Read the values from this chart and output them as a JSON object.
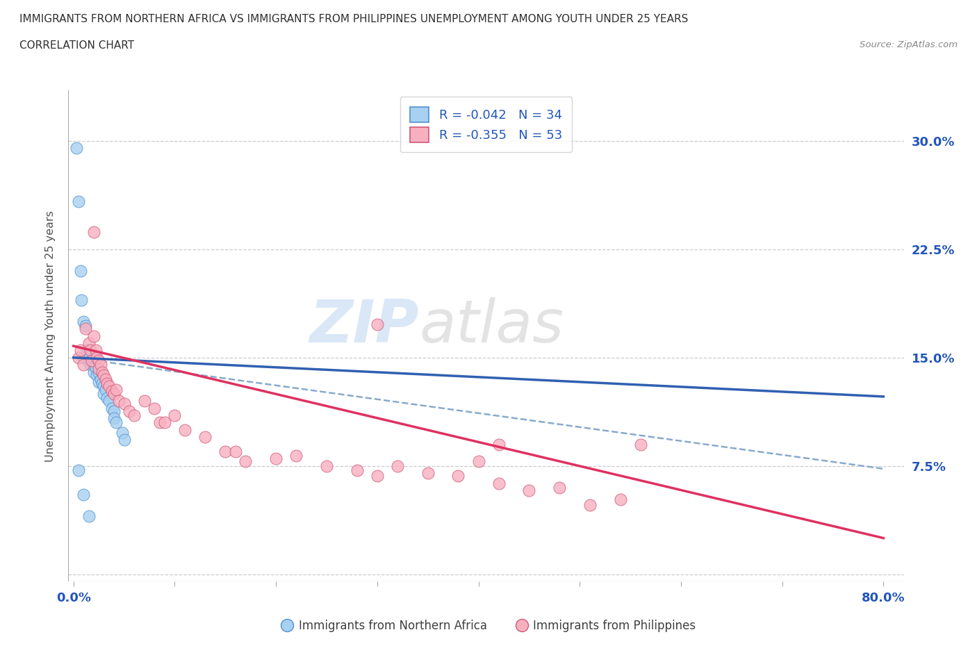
{
  "title_line1": "IMMIGRANTS FROM NORTHERN AFRICA VS IMMIGRANTS FROM PHILIPPINES UNEMPLOYMENT AMONG YOUTH UNDER 25 YEARS",
  "title_line2": "CORRELATION CHART",
  "source_text": "Source: ZipAtlas.com",
  "ylabel": "Unemployment Among Youth under 25 years",
  "xlim": [
    -0.005,
    0.82
  ],
  "ylim": [
    -0.005,
    0.335
  ],
  "yticks": [
    0.0,
    0.075,
    0.15,
    0.225,
    0.3
  ],
  "ytick_labels": [
    "",
    "7.5%",
    "15.0%",
    "22.5%",
    "30.0%"
  ],
  "xticks": [
    0.0,
    0.1,
    0.2,
    0.3,
    0.4,
    0.5,
    0.6,
    0.7,
    0.8
  ],
  "xtick_labels": [
    "0.0%",
    "",
    "",
    "",
    "",
    "",
    "",
    "",
    "80.0%"
  ],
  "watermark_zip": "ZIP",
  "watermark_atlas": "atlas",
  "legend_r1": "R = -0.042   N = 34",
  "legend_r2": "R = -0.355   N = 53",
  "color_blue": "#a8d0f0",
  "color_blue_edge": "#5090d0",
  "color_blue_line": "#3060b0",
  "color_pink": "#f8b0c0",
  "color_pink_edge": "#d05878",
  "color_pink_line": "#e03060",
  "color_dashed": "#88aacc",
  "axis_label_color": "#2255bb",
  "blue_scatter_x": [
    0.003,
    0.005,
    0.007,
    0.008,
    0.01,
    0.01,
    0.012,
    0.013,
    0.015,
    0.015,
    0.017,
    0.018,
    0.02,
    0.02,
    0.022,
    0.023,
    0.025,
    0.025,
    0.027,
    0.028,
    0.03,
    0.03,
    0.032,
    0.033,
    0.035,
    0.038,
    0.04,
    0.04,
    0.042,
    0.048,
    0.05,
    0.005,
    0.01,
    0.015
  ],
  "blue_scatter_y": [
    0.295,
    0.258,
    0.21,
    0.19,
    0.175,
    0.15,
    0.172,
    0.155,
    0.153,
    0.147,
    0.145,
    0.148,
    0.15,
    0.14,
    0.143,
    0.138,
    0.14,
    0.133,
    0.135,
    0.132,
    0.13,
    0.125,
    0.128,
    0.122,
    0.12,
    0.115,
    0.113,
    0.108,
    0.105,
    0.098,
    0.093,
    0.072,
    0.055,
    0.04
  ],
  "pink_scatter_x": [
    0.005,
    0.007,
    0.01,
    0.012,
    0.015,
    0.017,
    0.018,
    0.02,
    0.022,
    0.023,
    0.025,
    0.025,
    0.027,
    0.028,
    0.03,
    0.032,
    0.033,
    0.035,
    0.038,
    0.04,
    0.042,
    0.045,
    0.05,
    0.055,
    0.06,
    0.07,
    0.08,
    0.085,
    0.09,
    0.1,
    0.11,
    0.13,
    0.15,
    0.16,
    0.17,
    0.2,
    0.22,
    0.25,
    0.28,
    0.3,
    0.32,
    0.35,
    0.38,
    0.4,
    0.42,
    0.45,
    0.48,
    0.51,
    0.54,
    0.56,
    0.02,
    0.3,
    0.42
  ],
  "pink_scatter_y": [
    0.15,
    0.155,
    0.145,
    0.17,
    0.16,
    0.155,
    0.148,
    0.165,
    0.155,
    0.15,
    0.148,
    0.142,
    0.145,
    0.14,
    0.138,
    0.135,
    0.132,
    0.13,
    0.127,
    0.125,
    0.128,
    0.12,
    0.118,
    0.113,
    0.11,
    0.12,
    0.115,
    0.105,
    0.105,
    0.11,
    0.1,
    0.095,
    0.085,
    0.085,
    0.078,
    0.08,
    0.082,
    0.075,
    0.072,
    0.068,
    0.075,
    0.07,
    0.068,
    0.078,
    0.063,
    0.058,
    0.06,
    0.048,
    0.052,
    0.09,
    0.237,
    0.173,
    0.09
  ],
  "blue_line_x0": 0.0,
  "blue_line_x1": 0.8,
  "blue_line_y0": 0.15,
  "blue_line_y1": 0.123,
  "pink_line_x0": 0.0,
  "pink_line_x1": 0.8,
  "pink_line_y0": 0.158,
  "pink_line_y1": 0.025,
  "dash_line_x0": 0.0,
  "dash_line_x1": 0.8,
  "dash_line_y0": 0.15,
  "dash_line_y1": 0.073
}
